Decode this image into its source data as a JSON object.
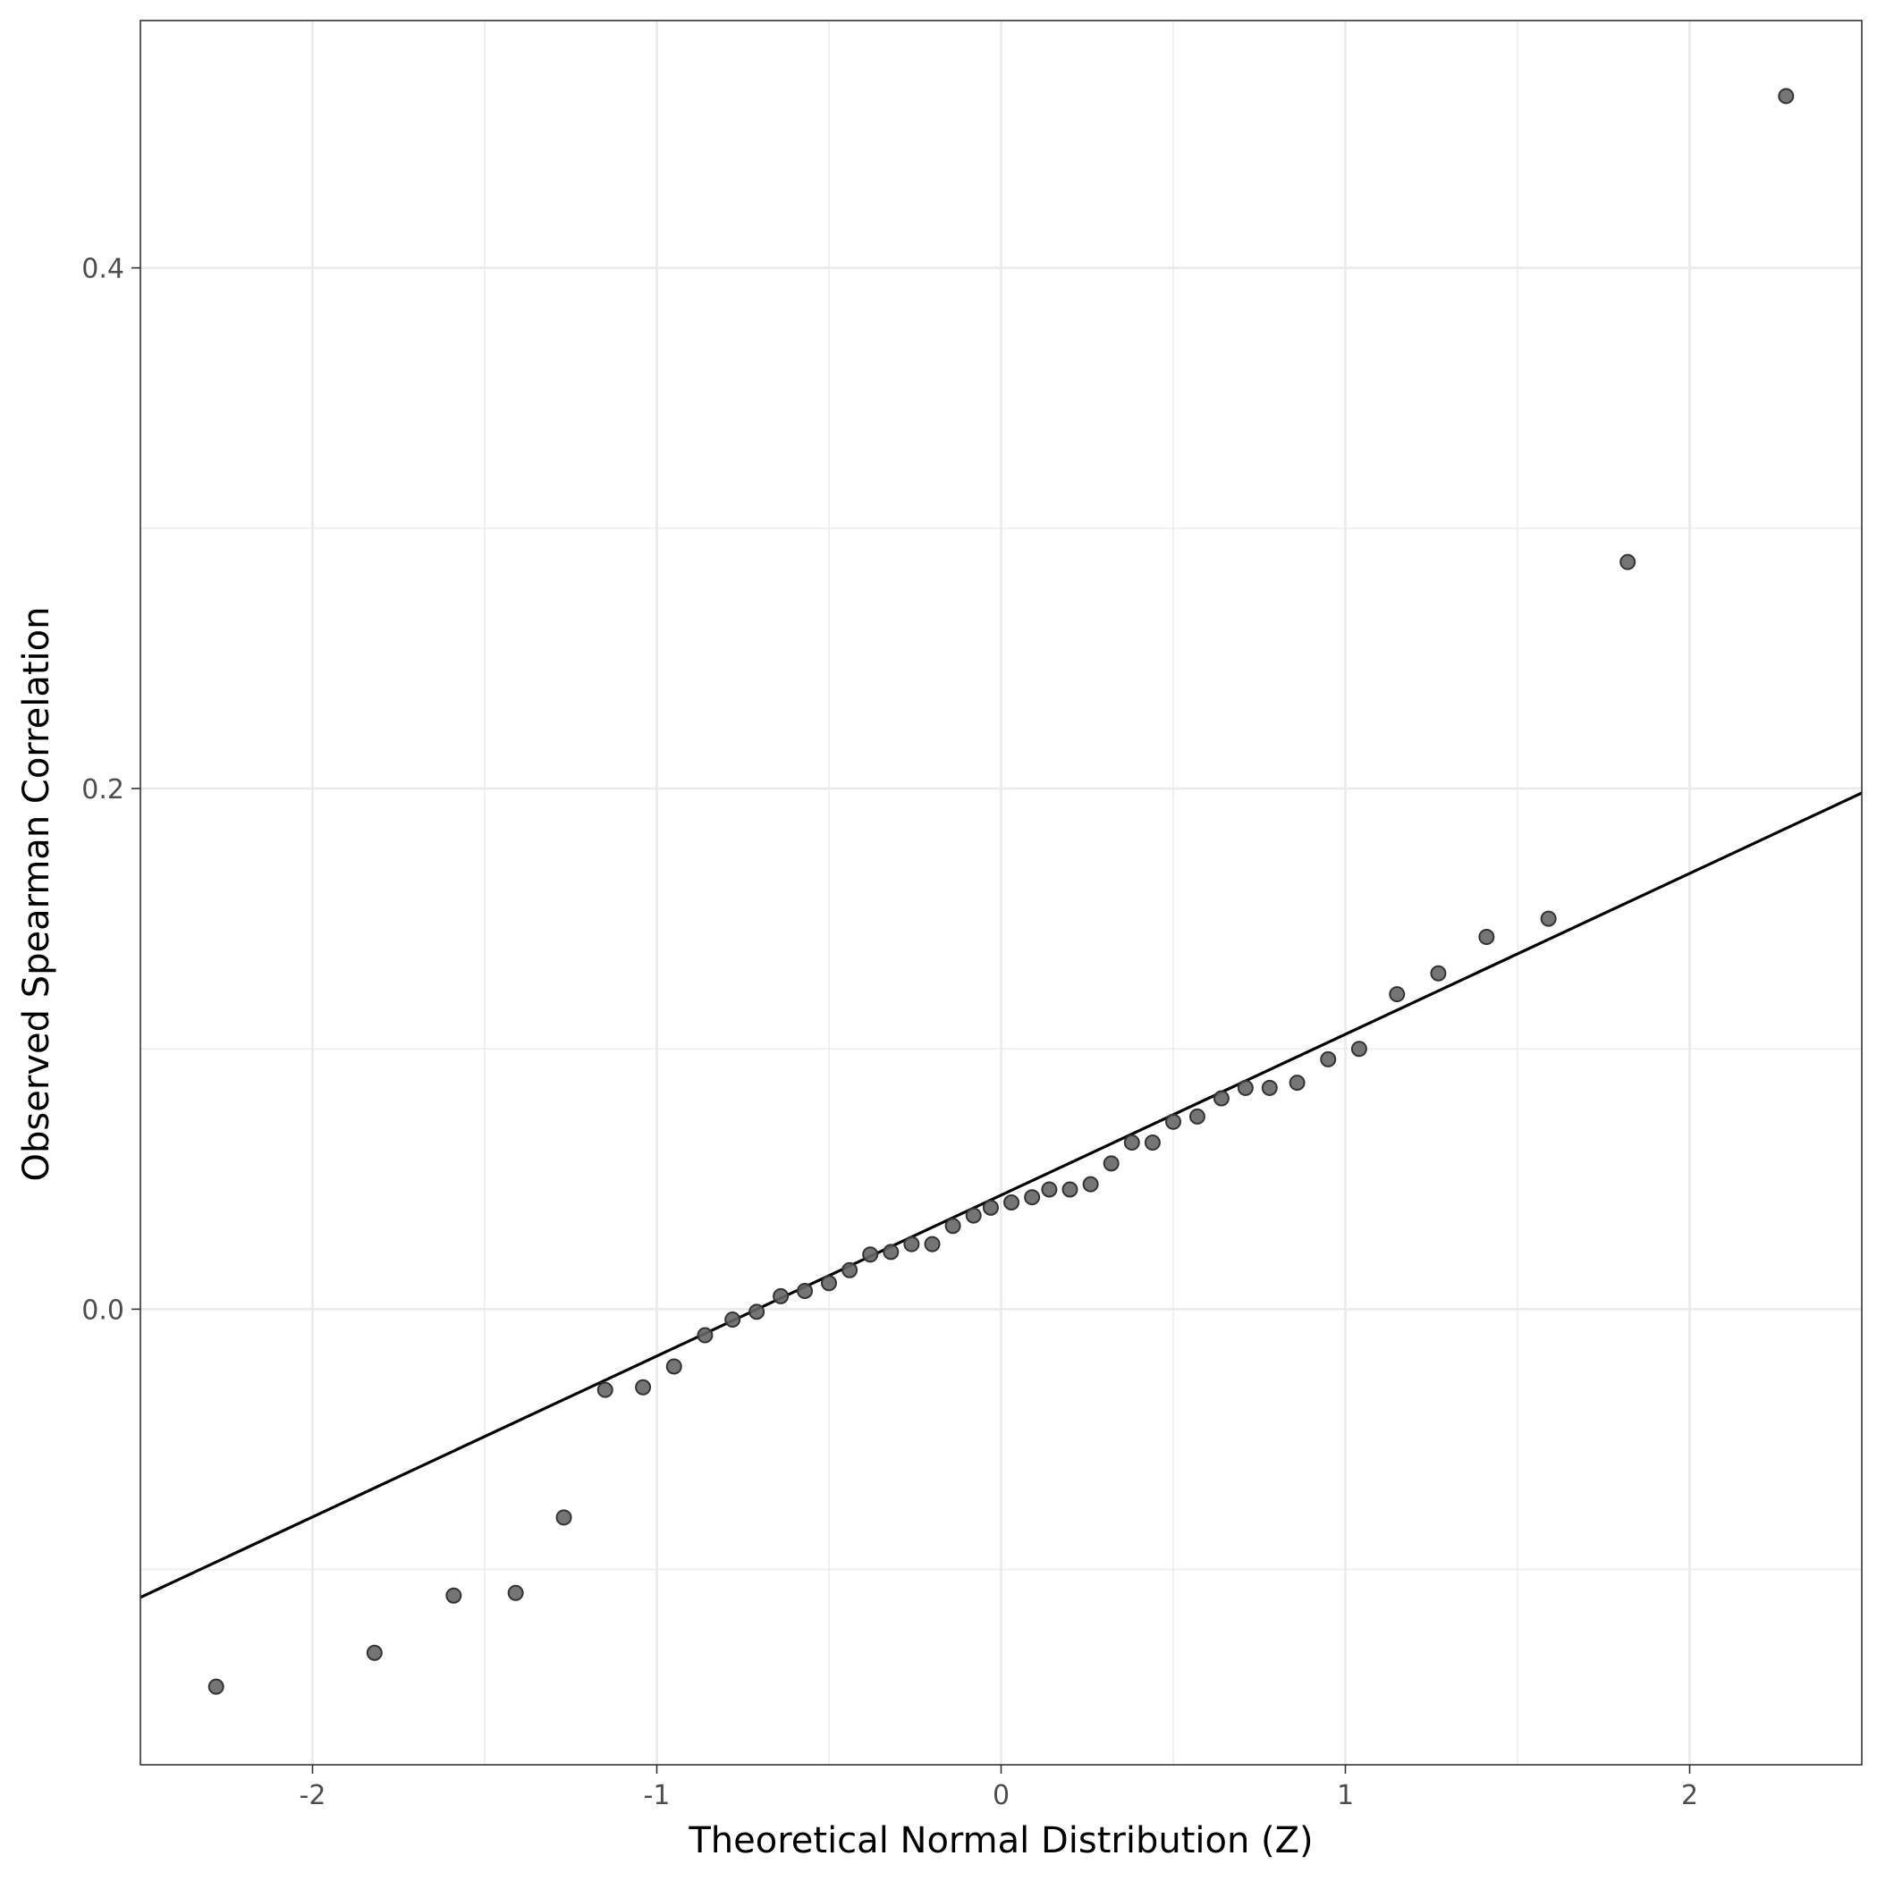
{
  "chart_data": {
    "type": "scatter",
    "title": "",
    "xlabel": "Theoretical Normal Distribution (Z)",
    "ylabel": "Observed Spearman Correlation",
    "xlim": [
      -2.5,
      2.5
    ],
    "ylim": [
      -0.175,
      0.495
    ],
    "x_ticks": [
      -2,
      -1,
      0,
      1,
      2
    ],
    "x_tick_labels": [
      "-2",
      "-1",
      "0",
      "1",
      "2"
    ],
    "y_ticks": [
      0.0,
      0.2,
      0.4
    ],
    "y_tick_labels": [
      "0.0",
      "0.2",
      "0.4"
    ],
    "x_minor_grid": [
      -1.5,
      -0.5,
      0.5,
      1.5
    ],
    "y_minor_grid": [
      -0.1,
      0.1,
      0.3
    ],
    "grid": true,
    "legend": "none",
    "point_color": "#666666",
    "point_stroke": "#333333",
    "line_color": "#000000",
    "panel_border_color": "#333333",
    "grid_color": "#ebebeb",
    "points": {
      "x": [
        -2.28,
        -1.82,
        -1.59,
        -1.41,
        -1.27,
        -1.15,
        -1.04,
        -0.95,
        -0.86,
        -0.78,
        -0.71,
        -0.64,
        -0.57,
        -0.5,
        -0.44,
        -0.38,
        -0.32,
        -0.26,
        -0.2,
        -0.14,
        -0.08,
        -0.03,
        0.03,
        0.09,
        0.14,
        0.2,
        0.26,
        0.32,
        0.38,
        0.44,
        0.5,
        0.57,
        0.64,
        0.71,
        0.78,
        0.86,
        0.95,
        1.04,
        1.15,
        1.27,
        1.41,
        1.59,
        1.82,
        2.28
      ],
      "y": [
        -0.145,
        -0.132,
        -0.11,
        -0.109,
        -0.08,
        -0.031,
        -0.03,
        -0.022,
        -0.01,
        -0.004,
        -0.001,
        0.005,
        0.007,
        0.01,
        0.015,
        0.021,
        0.022,
        0.025,
        0.025,
        0.032,
        0.036,
        0.039,
        0.041,
        0.043,
        0.046,
        0.046,
        0.048,
        0.056,
        0.064,
        0.064,
        0.072,
        0.074,
        0.081,
        0.085,
        0.085,
        0.087,
        0.096,
        0.1,
        0.121,
        0.129,
        0.143,
        0.15,
        0.287,
        0.466
      ]
    },
    "reference_line": {
      "slope": 0.0618,
      "intercept": 0.0438
    }
  }
}
